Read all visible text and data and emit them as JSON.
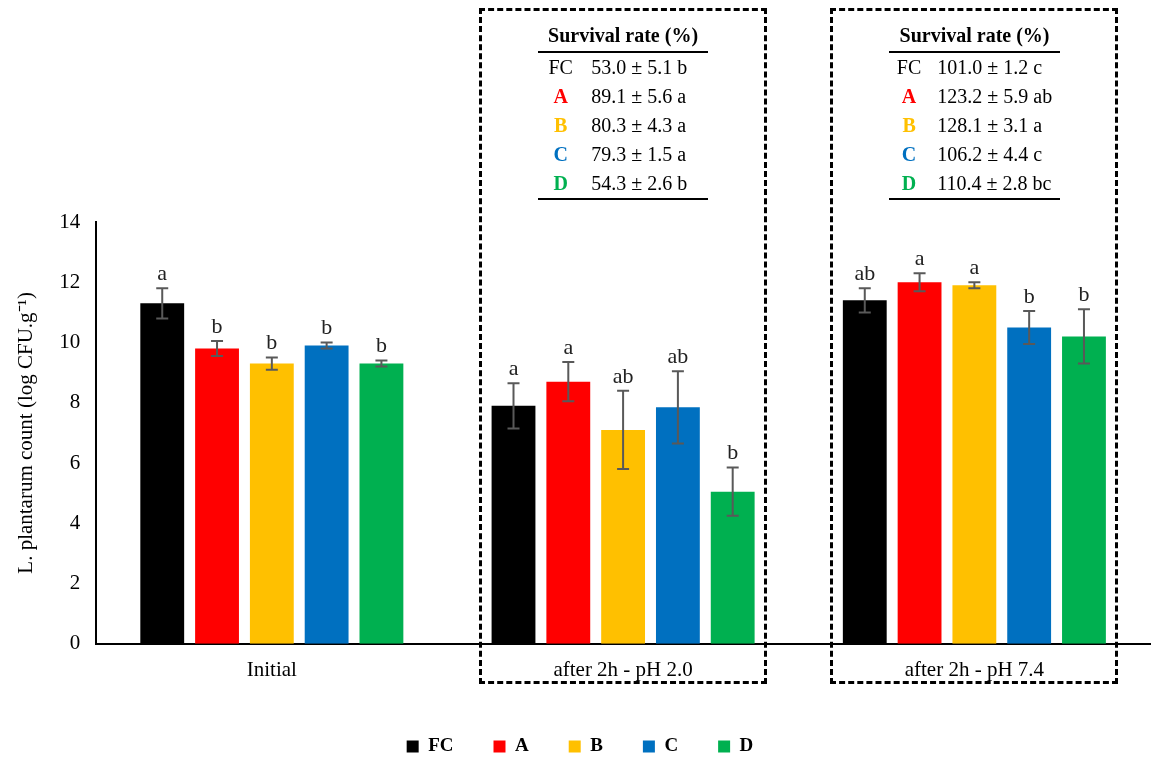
{
  "chart_data": {
    "type": "bar",
    "ylabel": "L. plantarum count (log CFU.g⁻¹)",
    "categories": [
      "Initial",
      "after 2h - pH 2.0",
      "after 2h - pH 7.4"
    ],
    "series": [
      {
        "name": "FC",
        "color": "#000000",
        "values": [
          11.3,
          7.9,
          11.4
        ],
        "errors": [
          0.5,
          0.75,
          0.4
        ],
        "value_labels": [
          "a",
          "a",
          "ab"
        ]
      },
      {
        "name": "A",
        "color": "#ff0000",
        "values": [
          9.8,
          8.7,
          12.0
        ],
        "errors": [
          0.25,
          0.65,
          0.3
        ],
        "value_labels": [
          "b",
          "a",
          "a"
        ]
      },
      {
        "name": "B",
        "color": "#ffc000",
        "values": [
          9.3,
          7.1,
          11.9
        ],
        "errors": [
          0.2,
          1.3,
          0.1
        ],
        "value_labels": [
          "b",
          "ab",
          "a"
        ]
      },
      {
        "name": "C",
        "color": "#0070c0",
        "values": [
          9.9,
          7.85,
          10.5
        ],
        "errors": [
          0.1,
          1.2,
          0.55
        ],
        "value_labels": [
          "b",
          "ab",
          "b"
        ]
      },
      {
        "name": "D",
        "color": "#00b050",
        "values": [
          9.3,
          5.05,
          10.2
        ],
        "errors": [
          0.1,
          0.8,
          0.9
        ],
        "value_labels": [
          "b",
          "b",
          "b"
        ]
      }
    ],
    "ylim": [
      0,
      14
    ],
    "yticks": [
      0,
      2,
      4,
      6,
      8,
      10,
      12,
      14
    ],
    "grid": false,
    "legend": "bottom",
    "annotations": [
      "Survival rate (%)",
      "FC 53.0 ± 5.1 b",
      "A 89.1 ± 5.6 a",
      "B 80.3 ± 4.3 a",
      "C 79.3 ± 1.5 a",
      "D 54.3 ± 2.6 b",
      "Survival rate (%)",
      "FC 101.0 ± 1.2 c",
      "A 123.2 ± 5.9 ab",
      "B 128.1 ± 3.1 a",
      "C 106.2 ± 4.4 c",
      "D 110.4 ± 2.8 bc"
    ]
  }
}
